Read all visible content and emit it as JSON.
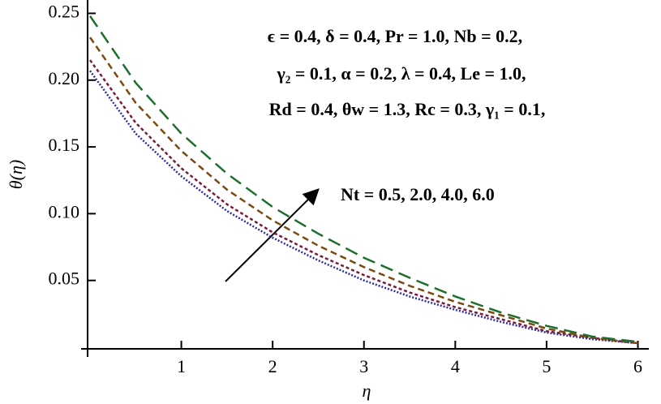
{
  "chart_data": {
    "type": "line",
    "x_label": "η",
    "y_label": "θ(η)",
    "x": [
      0,
      0.5,
      1,
      1.5,
      2,
      2.5,
      3,
      3.5,
      4,
      4.5,
      5,
      5.5,
      6
    ],
    "series": [
      {
        "color": "#2b2ba3",
        "dash": "2,2",
        "values": [
          0.207,
          0.16,
          0.128,
          0.102,
          0.082,
          0.065,
          0.05,
          0.038,
          0.028,
          0.019,
          0.011,
          0.006,
          0.003
        ]
      },
      {
        "color": "#7a1a3a",
        "dash": "4,3",
        "values": [
          0.215,
          0.168,
          0.134,
          0.107,
          0.086,
          0.069,
          0.054,
          0.041,
          0.03,
          0.021,
          0.012,
          0.007,
          0.003
        ]
      },
      {
        "color": "#7a4a10",
        "dash": "8,5",
        "values": [
          0.232,
          0.183,
          0.147,
          0.118,
          0.095,
          0.076,
          0.06,
          0.046,
          0.034,
          0.024,
          0.014,
          0.007,
          0.003
        ]
      },
      {
        "color": "#1e6e2e",
        "dash": "16,8",
        "values": [
          0.248,
          0.198,
          0.16,
          0.13,
          0.105,
          0.085,
          0.067,
          0.052,
          0.038,
          0.026,
          0.016,
          0.008,
          0.004
        ]
      }
    ],
    "xlim": [
      0,
      6.12
    ],
    "ylim": [
      0,
      0.26
    ],
    "xticks": [
      1,
      2,
      3,
      4,
      5,
      6
    ],
    "yticks": [
      0.05,
      {
        "value": 0.1,
        "label": "0.10"
      },
      0.15,
      {
        "value": 0.2,
        "label": "0.20"
      },
      0.25
    ],
    "annotations": [
      "ϵ = 0.4,  δ = 0.4,  Pr = 1.0,  Nb = 0.2,",
      "γ₂  = 0.1,  α = 0.2,  λ = 0.4,  Le = 1.0,",
      "Rd = 0.4,  θw = 1.3,  Rc = 0.3,  γ₁  = 0.1,",
      "Nt = 0.5,  2.0,  4.0,  6.0"
    ]
  }
}
